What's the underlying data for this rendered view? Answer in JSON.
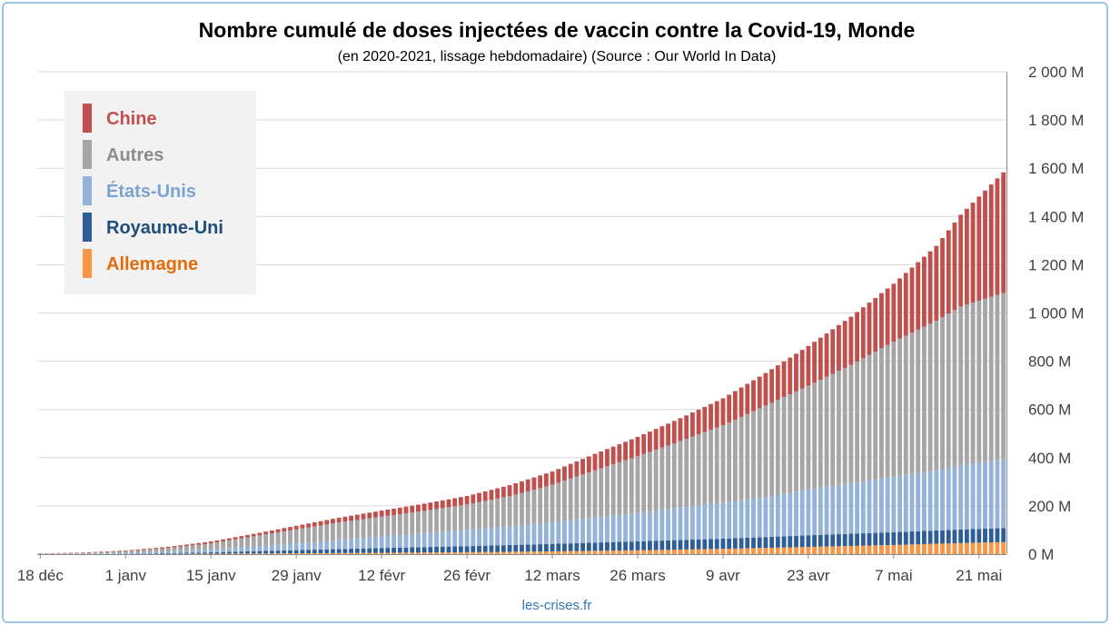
{
  "chart_data": {
    "type": "bar",
    "stacked": true,
    "title": "Nombre cumulé de doses injectées de vaccin contre la Covid-19, Monde",
    "subtitle": "(en 2020-2021, lissage hebdomadaire) (Source : Our World In Data)",
    "credit": "les-crises.fr",
    "x_ticks": [
      "18 déc",
      "1 janv",
      "15 janv",
      "29 janv",
      "12 févr",
      "26 févr",
      "12 mars",
      "26 mars",
      "9 avr",
      "23 avr",
      "7 mai",
      "21 mai"
    ],
    "y_ticks": [
      "0 M",
      "200 M",
      "400 M",
      "600 M",
      "800 M",
      "1 000 M",
      "1 200 M",
      "1 400 M",
      "1 600 M",
      "1 800 M",
      "2 000 M"
    ],
    "ylim": [
      0,
      2000
    ],
    "y_unit": "M",
    "legend_position": "top-left",
    "x_start": "2020-12-18",
    "x_end": "2021-05-25",
    "series": [
      {
        "name": "Allemagne",
        "color": "#f79646",
        "label_color": "#e36c09",
        "anchors": [
          [
            0,
            0
          ],
          [
            14,
            0.2
          ],
          [
            28,
            1.8
          ],
          [
            42,
            3.5
          ],
          [
            56,
            5.5
          ],
          [
            70,
            8
          ],
          [
            84,
            11.5
          ],
          [
            98,
            16
          ],
          [
            112,
            22
          ],
          [
            126,
            30
          ],
          [
            140,
            38
          ],
          [
            151,
            46
          ],
          [
            158,
            50
          ]
        ]
      },
      {
        "name": "Royaume-Uni",
        "color": "#2f5e96",
        "label_color": "#1f4e79",
        "anchors": [
          [
            0,
            0
          ],
          [
            14,
            1
          ],
          [
            28,
            5.5
          ],
          [
            42,
            13
          ],
          [
            56,
            20
          ],
          [
            70,
            25
          ],
          [
            84,
            31
          ],
          [
            98,
            37
          ],
          [
            112,
            42
          ],
          [
            126,
            48
          ],
          [
            140,
            53
          ],
          [
            151,
            56
          ],
          [
            158,
            58
          ]
        ]
      },
      {
        "name": "États-Unis",
        "color": "#95b3d7",
        "label_color": "#7ca3d0",
        "anchors": [
          [
            0,
            0
          ],
          [
            7,
            1
          ],
          [
            14,
            3
          ],
          [
            21,
            6
          ],
          [
            28,
            13
          ],
          [
            35,
            20
          ],
          [
            42,
            28
          ],
          [
            49,
            38
          ],
          [
            56,
            48
          ],
          [
            63,
            58
          ],
          [
            70,
            68
          ],
          [
            77,
            78
          ],
          [
            84,
            90
          ],
          [
            91,
            105
          ],
          [
            98,
            118
          ],
          [
            105,
            135
          ],
          [
            112,
            150
          ],
          [
            119,
            165
          ],
          [
            126,
            190
          ],
          [
            133,
            210
          ],
          [
            140,
            230
          ],
          [
            147,
            250
          ],
          [
            151,
            265
          ],
          [
            158,
            285
          ]
        ]
      },
      {
        "name": "Autres",
        "color": "#a6a6a6",
        "label_color": "#8c8c8c",
        "anchors": [
          [
            0,
            2
          ],
          [
            7,
            3
          ],
          [
            14,
            8
          ],
          [
            21,
            15
          ],
          [
            28,
            24
          ],
          [
            35,
            42
          ],
          [
            42,
            58
          ],
          [
            49,
            72
          ],
          [
            56,
            82
          ],
          [
            63,
            92
          ],
          [
            70,
            105
          ],
          [
            77,
            125
          ],
          [
            84,
            155
          ],
          [
            91,
            195
          ],
          [
            98,
            235
          ],
          [
            105,
            275
          ],
          [
            112,
            320
          ],
          [
            119,
            380
          ],
          [
            126,
            430
          ],
          [
            133,
            490
          ],
          [
            140,
            560
          ],
          [
            147,
            620
          ],
          [
            151,
            660
          ],
          [
            158,
            690
          ]
        ]
      },
      {
        "name": "Chine",
        "color": "#c0504d",
        "label_color": "#c0504d",
        "anchors": [
          [
            0,
            1
          ],
          [
            7,
            2
          ],
          [
            14,
            3
          ],
          [
            21,
            5
          ],
          [
            28,
            8
          ],
          [
            35,
            10
          ],
          [
            42,
            15
          ],
          [
            49,
            20
          ],
          [
            56,
            25
          ],
          [
            63,
            30
          ],
          [
            70,
            35
          ],
          [
            77,
            45
          ],
          [
            84,
            55
          ],
          [
            91,
            68
          ],
          [
            98,
            80
          ],
          [
            105,
            95
          ],
          [
            112,
            112
          ],
          [
            119,
            135
          ],
          [
            126,
            165
          ],
          [
            133,
            200
          ],
          [
            140,
            240
          ],
          [
            147,
            310
          ],
          [
            151,
            380
          ],
          [
            158,
            500
          ]
        ]
      }
    ]
  }
}
